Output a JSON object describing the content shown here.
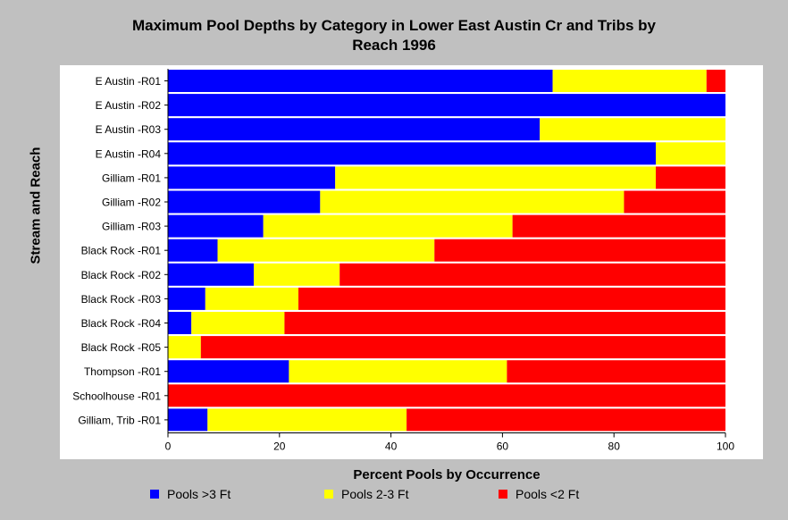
{
  "chart_data": {
    "type": "bar",
    "orientation": "horizontal",
    "stacked": true,
    "title": [
      "Maximum Pool Depths by Category in Lower East Austin Cr and Tribs by",
      "Reach 1996"
    ],
    "xlabel": "Percent Pools by Occurrence",
    "ylabel": "Stream and Reach",
    "xlim": [
      0,
      100
    ],
    "xticks": [
      0,
      20,
      40,
      60,
      80,
      100
    ],
    "grid": false,
    "legend_position": "bottom",
    "categories": [
      "E Austin -R01",
      "E Austin -R02",
      "E Austin -R03",
      "E Austin -R04",
      "Gilliam -R01",
      "Gilliam -R02",
      "Gilliam -R03",
      "Black Rock -R01",
      "Black Rock -R02",
      "Black Rock -R03",
      "Black Rock -R04",
      "Black Rock -R05",
      "Thompson -R01",
      "Schoolhouse -R01",
      "Gilliam, Trib -R01"
    ],
    "series": [
      {
        "name": "Pools >3 Ft",
        "color": "#0000ff",
        "values": [
          69.0,
          100.0,
          66.7,
          87.5,
          30.0,
          27.3,
          17.1,
          8.9,
          15.4,
          6.7,
          4.2,
          0.0,
          21.7,
          0.0,
          7.1
        ]
      },
      {
        "name": "Pools 2-3 Ft",
        "color": "#ffff00",
        "values": [
          27.6,
          0.0,
          33.3,
          12.5,
          57.5,
          54.5,
          44.7,
          38.9,
          15.4,
          16.7,
          16.7,
          5.9,
          39.1,
          0.0,
          35.7
        ]
      },
      {
        "name": "Pools <2 Ft",
        "color": "#ff0000",
        "values": [
          3.4,
          0.0,
          0.0,
          0.0,
          12.5,
          18.2,
          38.2,
          52.2,
          69.2,
          76.6,
          79.1,
          94.1,
          39.2,
          100.0,
          57.2
        ]
      }
    ]
  }
}
